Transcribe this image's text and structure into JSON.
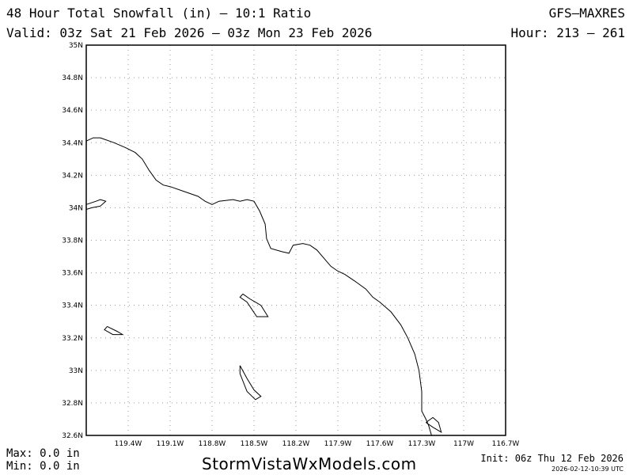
{
  "header": {
    "title": "48 Hour Total Snowfall (in) – 10:1 Ratio",
    "model": "GFS–MAXRES",
    "valid": "Valid: 03z Sat 21 Feb 2026 – 03z Mon 23 Feb 2026",
    "hour": "Hour: 213 – 261"
  },
  "map": {
    "lat_range": [
      32.6,
      35.0
    ],
    "lon_range": [
      -119.7,
      -116.7
    ],
    "lat_ticks": [
      {
        "value": 35.0,
        "label": "35N"
      },
      {
        "value": 34.8,
        "label": "34.8N"
      },
      {
        "value": 34.6,
        "label": "34.6N"
      },
      {
        "value": 34.4,
        "label": "34.4N"
      },
      {
        "value": 34.2,
        "label": "34.2N"
      },
      {
        "value": 34.0,
        "label": "34N"
      },
      {
        "value": 33.8,
        "label": "33.8N"
      },
      {
        "value": 33.6,
        "label": "33.6N"
      },
      {
        "value": 33.4,
        "label": "33.4N"
      },
      {
        "value": 33.2,
        "label": "33.2N"
      },
      {
        "value": 33.0,
        "label": "33N"
      },
      {
        "value": 32.8,
        "label": "32.8N"
      },
      {
        "value": 32.6,
        "label": "32.6N"
      }
    ],
    "lon_ticks": [
      {
        "value": -119.4,
        "label": "119.4W"
      },
      {
        "value": -119.1,
        "label": "119.1W"
      },
      {
        "value": -118.8,
        "label": "118.8W"
      },
      {
        "value": -118.5,
        "label": "118.5W"
      },
      {
        "value": -118.2,
        "label": "118.2W"
      },
      {
        "value": -117.9,
        "label": "117.9W"
      },
      {
        "value": -117.6,
        "label": "117.6W"
      },
      {
        "value": -117.3,
        "label": "117.3W"
      },
      {
        "value": -117.0,
        "label": "117W"
      },
      {
        "value": -116.7,
        "label": "116.7W"
      }
    ],
    "grid": true,
    "coastline": [
      [
        -119.7,
        34.41
      ],
      [
        -119.65,
        34.43
      ],
      [
        -119.6,
        34.43
      ],
      [
        -119.5,
        34.4
      ],
      [
        -119.42,
        34.37
      ],
      [
        -119.35,
        34.34
      ],
      [
        -119.3,
        34.3
      ],
      [
        -119.25,
        34.23
      ],
      [
        -119.2,
        34.17
      ],
      [
        -119.15,
        34.14
      ],
      [
        -119.1,
        34.13
      ],
      [
        -119.0,
        34.1
      ],
      [
        -118.9,
        34.07
      ],
      [
        -118.85,
        34.04
      ],
      [
        -118.8,
        34.02
      ],
      [
        -118.75,
        34.04
      ],
      [
        -118.65,
        34.05
      ],
      [
        -118.6,
        34.04
      ],
      [
        -118.55,
        34.05
      ],
      [
        -118.5,
        34.04
      ],
      [
        -118.46,
        33.98
      ],
      [
        -118.42,
        33.9
      ],
      [
        -118.41,
        33.81
      ],
      [
        -118.38,
        33.75
      ],
      [
        -118.3,
        33.73
      ],
      [
        -118.25,
        33.72
      ],
      [
        -118.22,
        33.77
      ],
      [
        -118.15,
        33.78
      ],
      [
        -118.1,
        33.77
      ],
      [
        -118.05,
        33.74
      ],
      [
        -118.0,
        33.69
      ],
      [
        -117.95,
        33.64
      ],
      [
        -117.9,
        33.61
      ],
      [
        -117.85,
        33.59
      ],
      [
        -117.78,
        33.55
      ],
      [
        -117.7,
        33.5
      ],
      [
        -117.65,
        33.45
      ],
      [
        -117.6,
        33.42
      ],
      [
        -117.52,
        33.36
      ],
      [
        -117.45,
        33.28
      ],
      [
        -117.4,
        33.2
      ],
      [
        -117.35,
        33.1
      ],
      [
        -117.32,
        33.0
      ],
      [
        -117.3,
        32.87
      ],
      [
        -117.3,
        32.75
      ],
      [
        -117.27,
        32.7
      ],
      [
        -117.25,
        32.66
      ],
      [
        -117.23,
        32.6
      ]
    ],
    "islands": [
      [
        [
          -119.7,
          34.02
        ],
        [
          -119.63,
          34.04
        ],
        [
          -119.6,
          34.05
        ],
        [
          -119.56,
          34.04
        ],
        [
          -119.6,
          34.01
        ],
        [
          -119.66,
          34.0
        ],
        [
          -119.7,
          33.99
        ]
      ],
      [
        [
          -118.58,
          33.47
        ],
        [
          -118.53,
          33.44
        ],
        [
          -118.45,
          33.4
        ],
        [
          -118.4,
          33.33
        ],
        [
          -118.48,
          33.33
        ],
        [
          -118.55,
          33.42
        ],
        [
          -118.6,
          33.45
        ],
        [
          -118.58,
          33.47
        ]
      ],
      [
        [
          -119.55,
          33.27
        ],
        [
          -119.48,
          33.24
        ],
        [
          -119.44,
          33.22
        ],
        [
          -119.51,
          33.22
        ],
        [
          -119.57,
          33.25
        ],
        [
          -119.55,
          33.27
        ]
      ],
      [
        [
          -118.6,
          33.03
        ],
        [
          -118.55,
          32.95
        ],
        [
          -118.5,
          32.88
        ],
        [
          -118.45,
          32.84
        ],
        [
          -118.49,
          32.82
        ],
        [
          -118.55,
          32.87
        ],
        [
          -118.6,
          32.98
        ],
        [
          -118.6,
          33.03
        ]
      ],
      [
        [
          -117.27,
          32.68
        ],
        [
          -117.22,
          32.71
        ],
        [
          -117.18,
          32.68
        ],
        [
          -117.16,
          32.62
        ],
        [
          -117.22,
          32.65
        ],
        [
          -117.27,
          32.68
        ]
      ]
    ]
  },
  "footer": {
    "max": "Max:  0.0 in",
    "min": "Min:  0.0 in",
    "brand": "StormVistaWxModels.com",
    "init": "Init: 06z Thu 12 Feb 2026",
    "stamp": "2026-02-12-10:39 UTC"
  }
}
